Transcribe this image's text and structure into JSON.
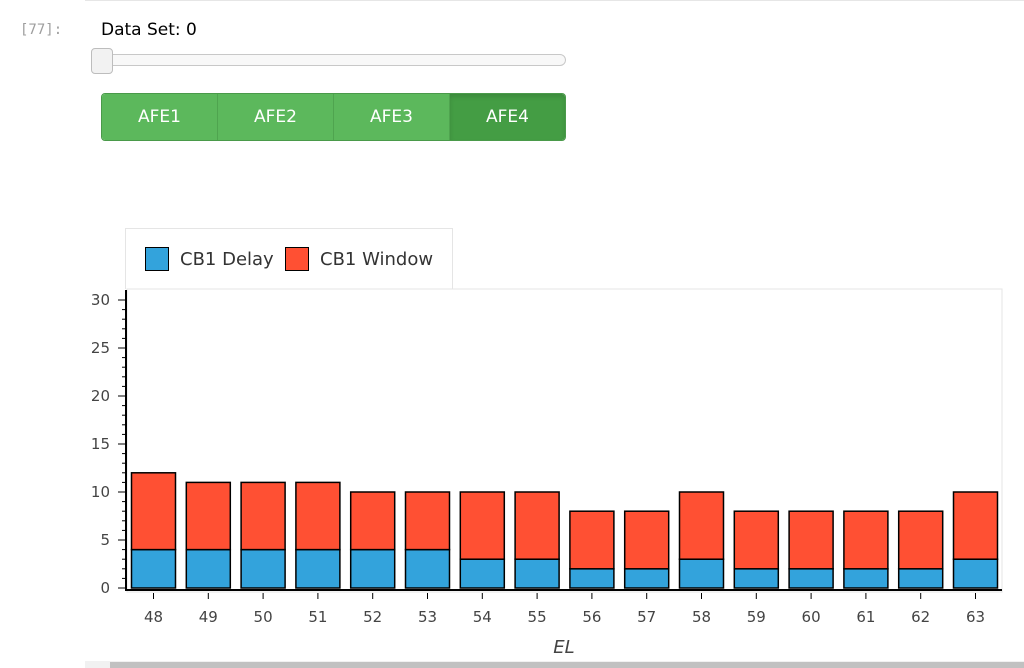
{
  "cell": {
    "prompt": "[77]:"
  },
  "slider": {
    "label": "Data Set:",
    "value": "0",
    "fraction": 0.0
  },
  "buttons": [
    {
      "label": "AFE1",
      "active": false
    },
    {
      "label": "AFE2",
      "active": false
    },
    {
      "label": "AFE3",
      "active": false
    },
    {
      "label": "AFE4",
      "active": true
    }
  ],
  "colors": {
    "delay": "#33a3dc",
    "window": "#ff5033",
    "button": "#5cb85c",
    "button_active": "#449d44"
  },
  "chart_data": {
    "type": "bar",
    "stacked": true,
    "categories": [
      "48",
      "49",
      "50",
      "51",
      "52",
      "53",
      "54",
      "55",
      "56",
      "57",
      "58",
      "59",
      "60",
      "61",
      "62",
      "63"
    ],
    "series": [
      {
        "name": "CB1 Delay",
        "values": [
          4,
          4,
          4,
          4,
          4,
          4,
          3,
          3,
          2,
          2,
          3,
          2,
          2,
          2,
          2,
          3
        ]
      },
      {
        "name": "CB1 Window",
        "values": [
          8,
          7,
          7,
          7,
          6,
          6,
          7,
          7,
          6,
          6,
          7,
          6,
          6,
          6,
          6,
          7
        ]
      }
    ],
    "xlabel": "EL",
    "ylabel": "",
    "ylim": [
      0,
      30
    ],
    "yticks": [
      "0",
      "5",
      "10",
      "15",
      "20",
      "25",
      "30"
    ],
    "grid": false,
    "legend_position": "top-left"
  }
}
